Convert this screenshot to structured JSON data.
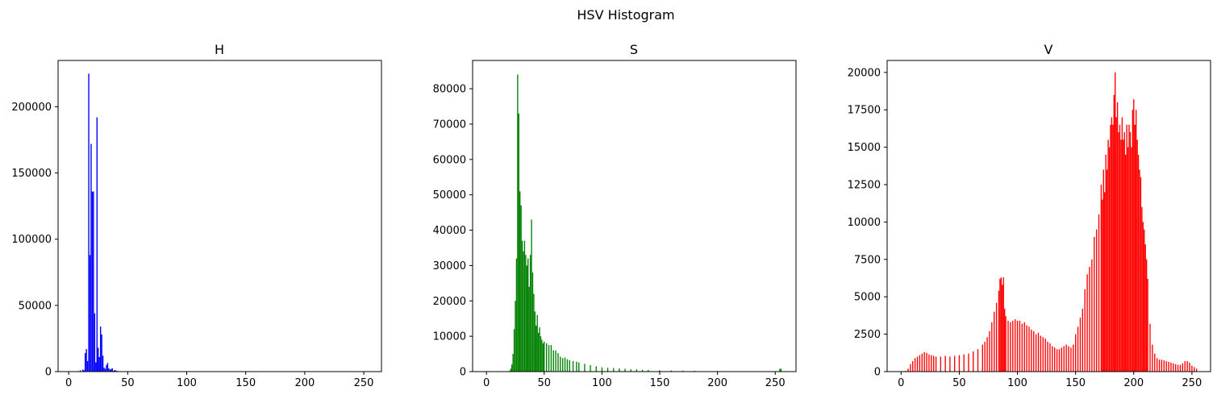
{
  "figure": {
    "suptitle": "HSV Histogram"
  },
  "chart_data": [
    {
      "type": "bar",
      "title": "H",
      "xlabel": "",
      "ylabel": "",
      "color": "#0000ff",
      "xlim": [
        -9,
        265
      ],
      "ylim": [
        0,
        235000
      ],
      "xticks": [
        0,
        50,
        100,
        150,
        200,
        250
      ],
      "yticks": [
        0,
        50000,
        100000,
        150000,
        200000
      ],
      "x": [
        8,
        10,
        12,
        13,
        14,
        15,
        16,
        17,
        18,
        19,
        20,
        21,
        22,
        23,
        24,
        25,
        26,
        27,
        28,
        29,
        30,
        31,
        32,
        33,
        34,
        35,
        36,
        37,
        38,
        39,
        40,
        41,
        42,
        43,
        44,
        45,
        46,
        47,
        48,
        49,
        50,
        55,
        60,
        70,
        80,
        90,
        100,
        120,
        140,
        160,
        180,
        200,
        220,
        240,
        255
      ],
      "values": [
        400,
        900,
        1500,
        1000,
        14000,
        17000,
        8000,
        225000,
        88000,
        172000,
        136000,
        136000,
        44000,
        7000,
        192000,
        18000,
        11000,
        34000,
        28000,
        12000,
        3000,
        2000,
        5000,
        6500,
        2500,
        1500,
        2000,
        2500,
        600,
        1200,
        800,
        500,
        300,
        200,
        150,
        120,
        100,
        80,
        80,
        70,
        60,
        50,
        40,
        30,
        30,
        20,
        20,
        20,
        20,
        20,
        20,
        20,
        20,
        20,
        20
      ]
    },
    {
      "type": "bar",
      "title": "S",
      "xlabel": "",
      "ylabel": "",
      "color": "#008000",
      "xlim": [
        -12,
        268
      ],
      "ylim": [
        0,
        88000
      ],
      "xticks": [
        0,
        50,
        100,
        150,
        200,
        250
      ],
      "yticks": [
        0,
        10000,
        20000,
        30000,
        40000,
        50000,
        60000,
        70000,
        80000
      ],
      "x": [
        20,
        21,
        22,
        23,
        24,
        25,
        26,
        27,
        28,
        29,
        30,
        31,
        32,
        33,
        34,
        35,
        36,
        37,
        38,
        39,
        40,
        41,
        42,
        43,
        44,
        45,
        46,
        47,
        48,
        49,
        50,
        52,
        54,
        56,
        58,
        60,
        62,
        64,
        66,
        68,
        70,
        72,
        75,
        78,
        80,
        85,
        90,
        95,
        100,
        105,
        110,
        115,
        120,
        125,
        130,
        135,
        140,
        150,
        160,
        170,
        180,
        200,
        220,
        240,
        254,
        255
      ],
      "values": [
        200,
        800,
        2000,
        5000,
        12000,
        20000,
        32000,
        84000,
        73000,
        51000,
        47000,
        37000,
        34000,
        37000,
        33000,
        30000,
        32000,
        24000,
        33000,
        43000,
        28000,
        22000,
        17000,
        13000,
        16000,
        11000,
        12500,
        10000,
        9000,
        8000,
        8500,
        8000,
        7500,
        7500,
        6000,
        6000,
        5200,
        4200,
        3800,
        4000,
        3500,
        3200,
        3000,
        2800,
        2600,
        2200,
        1800,
        1500,
        1200,
        1100,
        1000,
        900,
        800,
        650,
        600,
        500,
        450,
        350,
        300,
        250,
        200,
        150,
        100,
        80,
        800,
        800
      ]
    },
    {
      "type": "bar",
      "title": "V",
      "xlabel": "",
      "ylabel": "",
      "color": "#ff0000",
      "xlim": [
        -12,
        266
      ],
      "ylim": [
        0,
        20800
      ],
      "xticks": [
        0,
        50,
        100,
        150,
        200,
        250
      ],
      "yticks": [
        0,
        2500,
        5000,
        7500,
        10000,
        12500,
        15000,
        17500,
        20000
      ],
      "x": [
        2,
        4,
        6,
        8,
        10,
        12,
        14,
        16,
        18,
        20,
        22,
        24,
        26,
        28,
        30,
        34,
        38,
        42,
        46,
        50,
        54,
        58,
        62,
        66,
        70,
        72,
        74,
        76,
        78,
        80,
        82,
        84,
        85,
        86,
        87,
        88,
        89,
        90,
        92,
        94,
        96,
        98,
        100,
        102,
        104,
        106,
        108,
        110,
        112,
        114,
        116,
        118,
        120,
        122,
        124,
        126,
        128,
        130,
        132,
        134,
        136,
        138,
        140,
        142,
        144,
        146,
        148,
        150,
        152,
        154,
        156,
        158,
        160,
        162,
        164,
        166,
        168,
        170,
        172,
        173,
        174,
        175,
        176,
        177,
        178,
        179,
        180,
        181,
        182,
        183,
        184,
        185,
        186,
        187,
        188,
        189,
        190,
        191,
        192,
        193,
        194,
        195,
        196,
        197,
        198,
        199,
        200,
        201,
        202,
        203,
        204,
        205,
        206,
        207,
        208,
        209,
        210,
        211,
        212,
        214,
        216,
        218,
        220,
        222,
        224,
        226,
        228,
        230,
        232,
        234,
        236,
        238,
        240,
        242,
        244,
        246,
        248,
        250,
        252,
        254
      ],
      "values": [
        0,
        50,
        200,
        500,
        700,
        900,
        1000,
        1100,
        1200,
        1300,
        1250,
        1150,
        1100,
        1050,
        1000,
        1000,
        1050,
        1000,
        1050,
        1100,
        1150,
        1200,
        1350,
        1500,
        1800,
        2000,
        2300,
        2700,
        3300,
        4000,
        4600,
        5400,
        6200,
        6300,
        5800,
        6300,
        4200,
        3700,
        3400,
        3300,
        3400,
        3500,
        3400,
        3400,
        3200,
        3300,
        3100,
        3000,
        2800,
        2700,
        2500,
        2600,
        2400,
        2300,
        2200,
        2000,
        1900,
        1700,
        1600,
        1500,
        1500,
        1600,
        1700,
        1800,
        1700,
        1600,
        1800,
        2500,
        3000,
        3600,
        4200,
        5500,
        6500,
        7000,
        7500,
        9000,
        9500,
        10500,
        12500,
        11500,
        13500,
        12000,
        14500,
        13500,
        15500,
        15000,
        16500,
        17000,
        16500,
        18500,
        20000,
        17000,
        18000,
        16000,
        16500,
        15500,
        17000,
        15500,
        16000,
        14500,
        16500,
        15000,
        16500,
        16000,
        15000,
        17500,
        18200,
        16500,
        17500,
        15500,
        14500,
        13500,
        13000,
        11000,
        10000,
        9500,
        8500,
        7500,
        6200,
        3200,
        1800,
        1200,
        900,
        800,
        800,
        750,
        700,
        650,
        600,
        550,
        500,
        450,
        450,
        550,
        700,
        700,
        600,
        400,
        300,
        200
      ]
    }
  ]
}
